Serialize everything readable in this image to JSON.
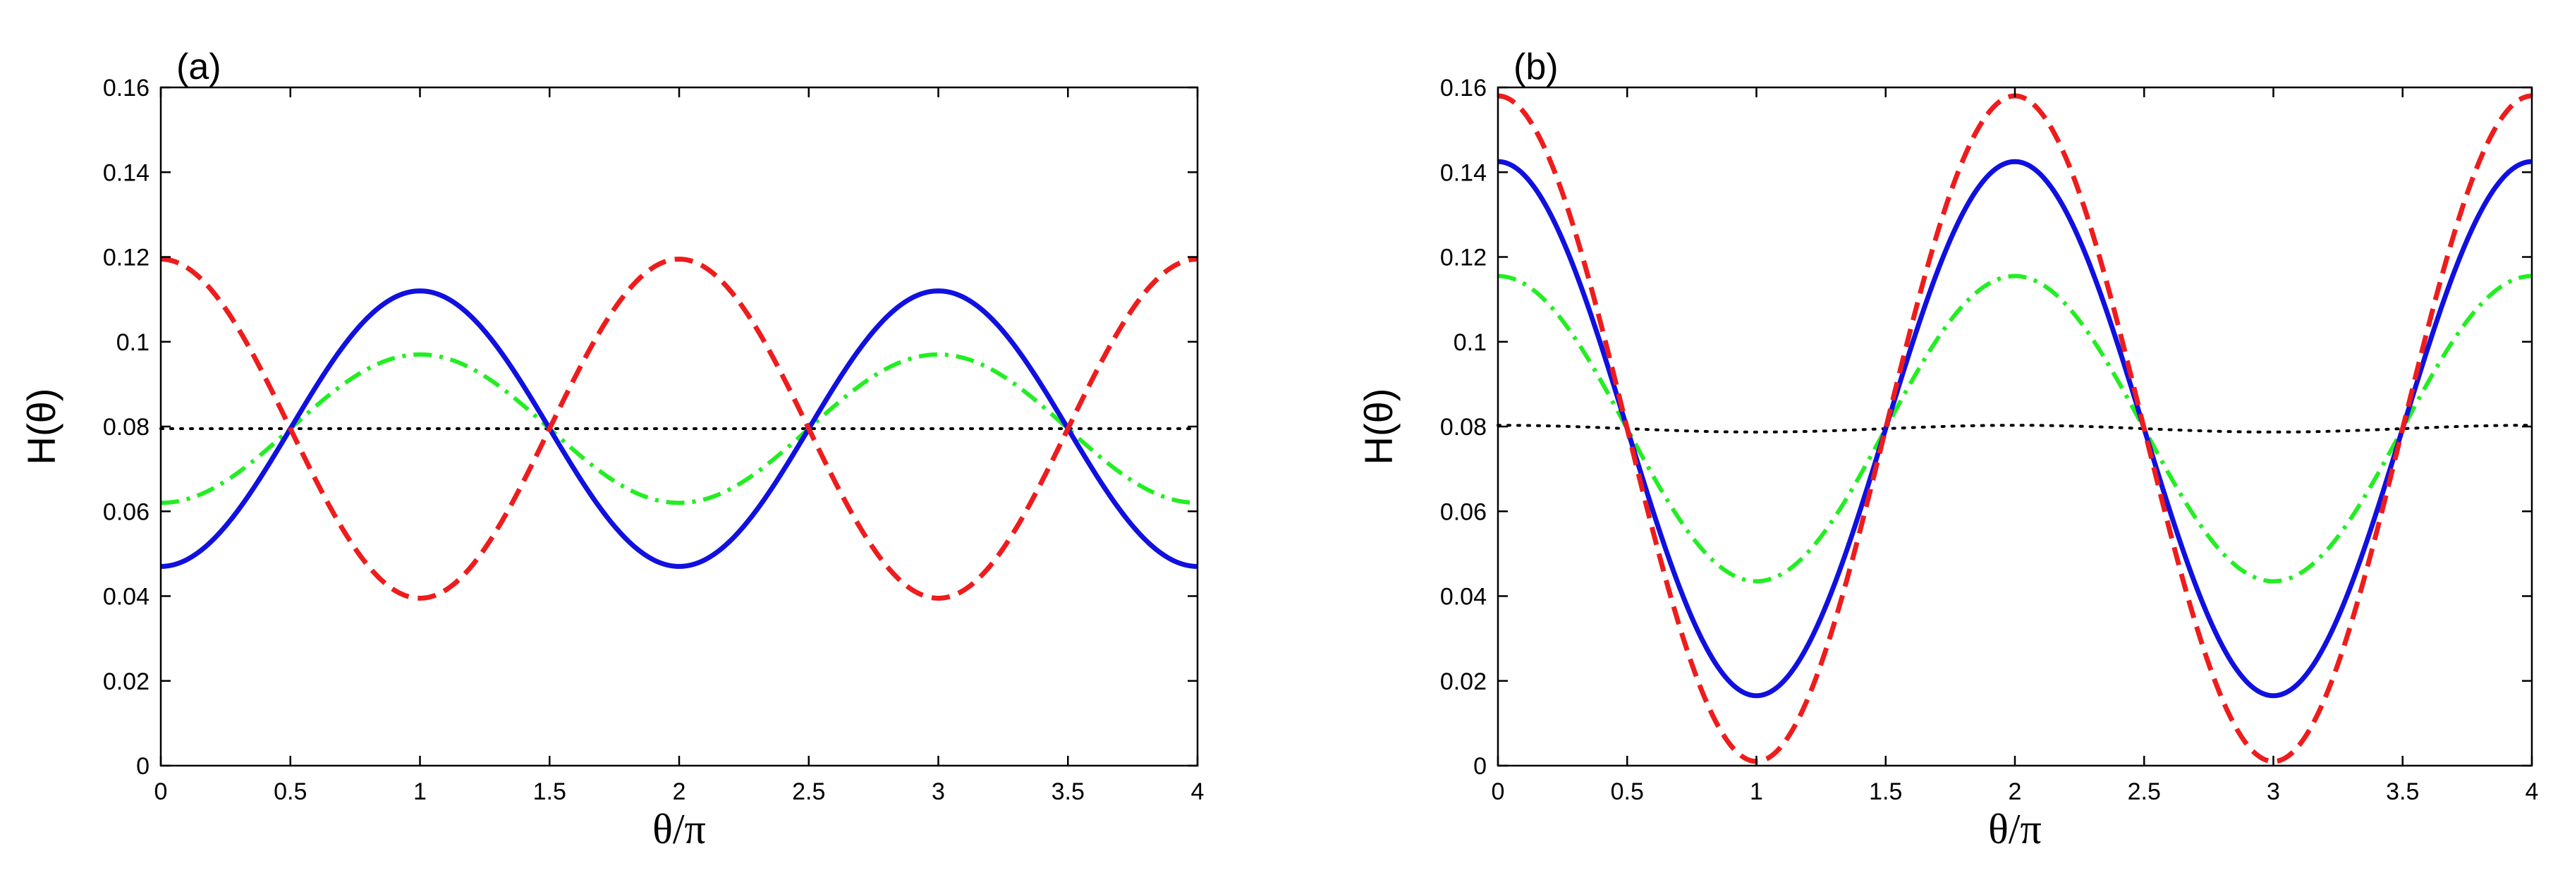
{
  "chart_data": [
    {
      "type": "line",
      "panel_label": "(a)",
      "xlabel": "θ/π",
      "ylabel": "H(θ)",
      "xlim": [
        0,
        4
      ],
      "ylim": [
        0,
        0.16
      ],
      "xticks": [
        0,
        0.5,
        1,
        1.5,
        2,
        2.5,
        3,
        3.5,
        4
      ],
      "xtick_labels": [
        "0",
        "0.5",
        "1",
        "1.5",
        "2",
        "2.5",
        "3",
        "3.5",
        "4"
      ],
      "yticks": [
        0,
        0.02,
        0.04,
        0.06,
        0.08,
        0.1,
        0.12,
        0.14,
        0.16
      ],
      "ytick_labels": [
        "0",
        "0.02",
        "0.04",
        "0.06",
        "0.08",
        "0.1",
        "0.12",
        "0.14",
        "0.16"
      ],
      "grid": false,
      "legend": "none",
      "series": [
        {
          "name": "dotted",
          "color": "#000000",
          "style": "dotted",
          "mean": 0.0795,
          "amplitude": 0.0,
          "max_at": 0
        },
        {
          "name": "dash-dot",
          "color": "#22ee22",
          "style": "dashdot",
          "mean": 0.0795,
          "amplitude": 0.0175,
          "max_at": 1
        },
        {
          "name": "solid",
          "color": "#1010e0",
          "style": "solid",
          "mean": 0.0795,
          "amplitude": 0.0325,
          "max_at": 1
        },
        {
          "name": "dashed",
          "color": "#ee1c1c",
          "style": "dashed",
          "mean": 0.0795,
          "amplitude": 0.04,
          "max_at": 0
        }
      ]
    },
    {
      "type": "line",
      "panel_label": "(b)",
      "xlabel": "θ/π",
      "ylabel": "H(θ)",
      "xlim": [
        0,
        4
      ],
      "ylim": [
        0,
        0.16
      ],
      "xticks": [
        0,
        0.5,
        1,
        1.5,
        2,
        2.5,
        3,
        3.5,
        4
      ],
      "xtick_labels": [
        "0",
        "0.5",
        "1",
        "1.5",
        "2",
        "2.5",
        "3",
        "3.5",
        "4"
      ],
      "yticks": [
        0,
        0.02,
        0.04,
        0.06,
        0.08,
        0.1,
        0.12,
        0.14,
        0.16
      ],
      "ytick_labels": [
        "0",
        "0.02",
        "0.04",
        "0.06",
        "0.08",
        "0.1",
        "0.12",
        "0.14",
        "0.16"
      ],
      "grid": false,
      "legend": "none",
      "series": [
        {
          "name": "dotted",
          "color": "#000000",
          "style": "dotted",
          "mean": 0.0795,
          "amplitude": 0.0008,
          "max_at": 0
        },
        {
          "name": "dash-dot",
          "color": "#22ee22",
          "style": "dashdot",
          "mean": 0.0795,
          "amplitude": 0.036,
          "max_at": 0
        },
        {
          "name": "solid",
          "color": "#1010e0",
          "style": "solid",
          "mean": 0.0795,
          "amplitude": 0.063,
          "max_at": 0
        },
        {
          "name": "dashed",
          "color": "#ee1c1c",
          "style": "dashed",
          "mean": 0.0795,
          "amplitude": 0.0785,
          "max_at": 0
        }
      ]
    }
  ]
}
